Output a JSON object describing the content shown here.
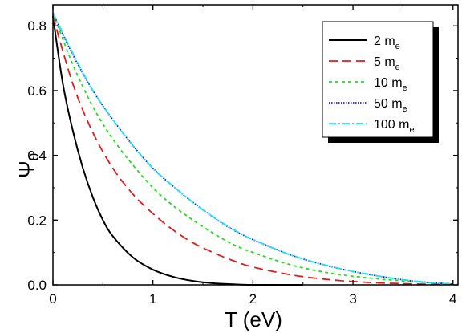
{
  "chart_data": {
    "type": "line",
    "title": "",
    "xlabel": "T (eV)",
    "ylabel": {
      "main": "Ψ",
      "sub": "0"
    },
    "xlim": [
      0,
      4.05
    ],
    "ylim": [
      0,
      0.865
    ],
    "xticks": [
      0,
      1,
      2,
      3,
      4
    ],
    "yticks": [
      0.0,
      0.2,
      0.4,
      0.6,
      0.8
    ],
    "xtick_labels": [
      "0",
      "1",
      "2",
      "3",
      "4"
    ],
    "ytick_labels": [
      "0.0",
      "0.2",
      "0.4",
      "0.6",
      "0.8"
    ],
    "grid": false,
    "legend_position": "top-right",
    "series": [
      {
        "name": "2 m",
        "name_sub": "e",
        "color": "#000000",
        "dash": "solid",
        "x": [
          0,
          0.1,
          0.2,
          0.3,
          0.4,
          0.5,
          0.6,
          0.8,
          1.0,
          1.2,
          1.4,
          1.6,
          1.8,
          2.0,
          2.5
        ],
        "y": [
          0.83,
          0.62,
          0.475,
          0.36,
          0.27,
          0.2,
          0.15,
          0.085,
          0.047,
          0.025,
          0.012,
          0.005,
          0.002,
          0.0,
          0.0
        ]
      },
      {
        "name": "5 m",
        "name_sub": "e",
        "color": "#e11d1d",
        "dash": "11,6",
        "x": [
          0,
          0.2,
          0.4,
          0.6,
          0.8,
          1.0,
          1.2,
          1.4,
          1.6,
          1.8,
          2.0,
          2.4,
          2.8,
          3.2,
          3.6,
          4.0
        ],
        "y": [
          0.83,
          0.62,
          0.47,
          0.36,
          0.28,
          0.22,
          0.17,
          0.13,
          0.1,
          0.075,
          0.055,
          0.03,
          0.015,
          0.007,
          0.003,
          0.001
        ]
      },
      {
        "name": "10 m",
        "name_sub": "e",
        "color": "#1fe01f",
        "dash": "4,4",
        "x": [
          0,
          0.2,
          0.4,
          0.6,
          0.8,
          1.0,
          1.2,
          1.4,
          1.6,
          1.8,
          2.0,
          2.4,
          2.8,
          3.2,
          3.6,
          4.0
        ],
        "y": [
          0.84,
          0.68,
          0.55,
          0.45,
          0.37,
          0.3,
          0.245,
          0.2,
          0.16,
          0.125,
          0.1,
          0.06,
          0.035,
          0.02,
          0.01,
          0.003
        ]
      },
      {
        "name": "50 m",
        "name_sub": "e",
        "color": "#1a1aff",
        "dash": "1.5,1.5",
        "x": [
          0,
          0.2,
          0.4,
          0.6,
          0.8,
          1.0,
          1.2,
          1.4,
          1.6,
          1.8,
          2.0,
          2.4,
          2.8,
          3.2,
          3.6,
          4.0
        ],
        "y": [
          0.84,
          0.71,
          0.6,
          0.51,
          0.43,
          0.36,
          0.305,
          0.255,
          0.21,
          0.17,
          0.14,
          0.09,
          0.055,
          0.03,
          0.012,
          0.002
        ]
      },
      {
        "name": "100 m",
        "name_sub": "e",
        "color": "#1fe0ee",
        "dash": "9,3,2,3",
        "x": [
          0,
          0.2,
          0.4,
          0.6,
          0.8,
          1.0,
          1.2,
          1.4,
          1.6,
          1.8,
          2.0,
          2.4,
          2.8,
          3.2,
          3.6,
          4.0
        ],
        "y": [
          0.84,
          0.715,
          0.6,
          0.51,
          0.43,
          0.36,
          0.305,
          0.255,
          0.21,
          0.172,
          0.14,
          0.09,
          0.055,
          0.03,
          0.012,
          0.002
        ]
      }
    ]
  }
}
